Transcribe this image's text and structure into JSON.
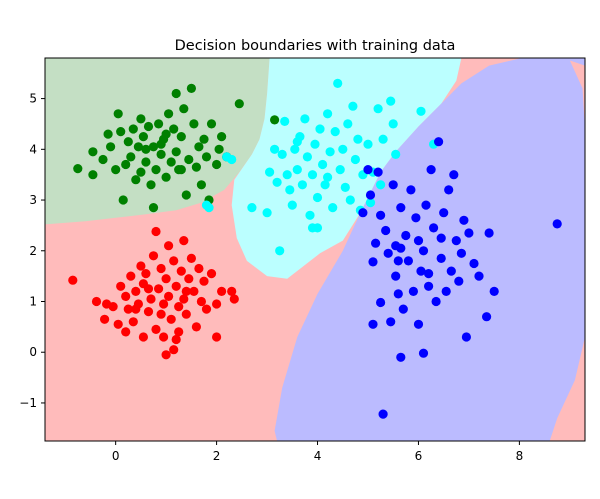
{
  "chart_data": {
    "type": "scatter",
    "title": "Decision boundaries with training data",
    "xlabel": "",
    "ylabel": "",
    "xlim": [
      -1.4,
      9.3
    ],
    "ylim": [
      -1.75,
      5.8
    ],
    "xticks": [
      0,
      2,
      4,
      6,
      8
    ],
    "yticks": [
      -1,
      0,
      1,
      2,
      3,
      4,
      5
    ],
    "grid": false,
    "legend": "none",
    "background_colors": {
      "red_region": "#ffbbbb",
      "green_region": "#c4dfc4",
      "cyan_region": "#bbffff",
      "blue_region": "#bbbbff"
    },
    "series": [
      {
        "color": "#ff0000",
        "points": [
          [
            -0.85,
            1.42
          ],
          [
            -0.38,
            1.0
          ],
          [
            -0.18,
            0.95
          ],
          [
            -0.22,
            0.65
          ],
          [
            -0.05,
            0.9
          ],
          [
            0.1,
            1.3
          ],
          [
            0.2,
            1.1
          ],
          [
            0.05,
            0.55
          ],
          [
            0.25,
            0.85
          ],
          [
            0.3,
            1.5
          ],
          [
            0.35,
            0.6
          ],
          [
            0.4,
            1.2
          ],
          [
            0.45,
            0.95
          ],
          [
            0.5,
            1.7
          ],
          [
            0.55,
            1.35
          ],
          [
            0.55,
            0.3
          ],
          [
            0.6,
            1.55
          ],
          [
            0.65,
            0.8
          ],
          [
            0.7,
            1.05
          ],
          [
            0.75,
            1.9
          ],
          [
            0.8,
            2.38
          ],
          [
            0.8,
            0.45
          ],
          [
            0.85,
            1.25
          ],
          [
            0.9,
            1.65
          ],
          [
            0.95,
            0.95
          ],
          [
            0.95,
            0.3
          ],
          [
            1.0,
            1.45
          ],
          [
            1.05,
            2.1
          ],
          [
            1.05,
            1.1
          ],
          [
            1.1,
            0.65
          ],
          [
            1.15,
            0.05
          ],
          [
            1.15,
            1.8
          ],
          [
            1.2,
            1.3
          ],
          [
            1.25,
            0.9
          ],
          [
            1.25,
            0.4
          ],
          [
            1.3,
            1.6
          ],
          [
            1.35,
            2.2
          ],
          [
            1.35,
            1.05
          ],
          [
            1.4,
            0.75
          ],
          [
            1.45,
            1.45
          ],
          [
            1.5,
            1.85
          ],
          [
            1.55,
            1.2
          ],
          [
            1.6,
            0.5
          ],
          [
            1.65,
            1.65
          ],
          [
            1.7,
            1.0
          ],
          [
            1.75,
            1.4
          ],
          [
            1.8,
            0.85
          ],
          [
            1.9,
            1.55
          ],
          [
            2.0,
            0.95
          ],
          [
            2.0,
            0.3
          ],
          [
            2.1,
            1.2
          ],
          [
            2.3,
            1.2
          ],
          [
            2.35,
            1.05
          ],
          [
            1.0,
            -0.05
          ],
          [
            0.65,
            1.25
          ],
          [
            0.2,
            0.4
          ],
          [
            1.4,
            1.2
          ],
          [
            0.9,
            0.75
          ],
          [
            0.4,
            0.85
          ],
          [
            1.2,
            0.25
          ]
        ]
      },
      {
        "color": "#008000",
        "points": [
          [
            -0.75,
            3.62
          ],
          [
            -0.45,
            3.5
          ],
          [
            -0.45,
            3.95
          ],
          [
            -0.25,
            3.8
          ],
          [
            -0.15,
            4.3
          ],
          [
            -0.1,
            4.05
          ],
          [
            0.0,
            3.6
          ],
          [
            0.05,
            4.7
          ],
          [
            0.1,
            4.35
          ],
          [
            0.15,
            3.0
          ],
          [
            0.2,
            3.7
          ],
          [
            0.25,
            4.15
          ],
          [
            0.3,
            3.85
          ],
          [
            0.35,
            4.4
          ],
          [
            0.4,
            3.4
          ],
          [
            0.45,
            4.05
          ],
          [
            0.5,
            3.55
          ],
          [
            0.5,
            4.6
          ],
          [
            0.55,
            4.25
          ],
          [
            0.6,
            3.75
          ],
          [
            0.65,
            4.45
          ],
          [
            0.7,
            3.3
          ],
          [
            0.75,
            2.85
          ],
          [
            0.75,
            4.05
          ],
          [
            0.8,
            3.6
          ],
          [
            0.85,
            4.5
          ],
          [
            0.9,
            3.9
          ],
          [
            0.95,
            4.2
          ],
          [
            1.0,
            3.45
          ],
          [
            1.05,
            4.7
          ],
          [
            1.1,
            3.75
          ],
          [
            1.15,
            4.4
          ],
          [
            1.2,
            5.1
          ],
          [
            1.2,
            3.95
          ],
          [
            1.25,
            3.6
          ],
          [
            1.3,
            4.25
          ],
          [
            1.35,
            4.8
          ],
          [
            1.4,
            3.1
          ],
          [
            1.45,
            3.8
          ],
          [
            1.5,
            5.2
          ],
          [
            1.55,
            4.5
          ],
          [
            1.6,
            3.65
          ],
          [
            1.65,
            4.05
          ],
          [
            1.7,
            3.3
          ],
          [
            1.75,
            4.2
          ],
          [
            1.8,
            3.85
          ],
          [
            1.85,
            3.0
          ],
          [
            1.9,
            4.5
          ],
          [
            2.0,
            3.7
          ],
          [
            2.05,
            4.0
          ],
          [
            2.1,
            4.25
          ],
          [
            2.2,
            3.85
          ],
          [
            2.45,
            4.9
          ],
          [
            3.15,
            4.58
          ],
          [
            0.9,
            4.1
          ],
          [
            1.3,
            3.6
          ],
          [
            0.6,
            4.0
          ],
          [
            1.0,
            4.3
          ]
        ]
      },
      {
        "color": "#00ffff",
        "points": [
          [
            1.8,
            2.9
          ],
          [
            1.85,
            2.85
          ],
          [
            2.2,
            3.85
          ],
          [
            2.3,
            3.8
          ],
          [
            2.7,
            2.85
          ],
          [
            3.0,
            2.75
          ],
          [
            3.05,
            3.55
          ],
          [
            3.15,
            4.0
          ],
          [
            3.2,
            3.35
          ],
          [
            3.25,
            2.0
          ],
          [
            3.3,
            3.9
          ],
          [
            3.35,
            4.55
          ],
          [
            3.4,
            3.5
          ],
          [
            3.45,
            3.2
          ],
          [
            3.5,
            2.9
          ],
          [
            3.55,
            4.0
          ],
          [
            3.6,
            3.6
          ],
          [
            3.65,
            4.25
          ],
          [
            3.7,
            3.3
          ],
          [
            3.75,
            4.6
          ],
          [
            3.8,
            3.85
          ],
          [
            3.85,
            2.7
          ],
          [
            3.9,
            3.5
          ],
          [
            3.95,
            4.1
          ],
          [
            4.0,
            3.05
          ],
          [
            4.05,
            4.4
          ],
          [
            4.1,
            3.7
          ],
          [
            4.15,
            3.3
          ],
          [
            4.2,
            4.7
          ],
          [
            4.25,
            3.95
          ],
          [
            4.3,
            2.85
          ],
          [
            4.35,
            4.35
          ],
          [
            4.4,
            5.3
          ],
          [
            4.45,
            3.6
          ],
          [
            4.5,
            4.0
          ],
          [
            4.55,
            3.25
          ],
          [
            4.6,
            4.5
          ],
          [
            4.65,
            3.0
          ],
          [
            4.7,
            4.85
          ],
          [
            4.75,
            3.8
          ],
          [
            4.8,
            4.2
          ],
          [
            4.85,
            2.8
          ],
          [
            4.9,
            3.5
          ],
          [
            5.0,
            4.1
          ],
          [
            5.05,
            2.95
          ],
          [
            5.1,
            3.55
          ],
          [
            5.2,
            4.8
          ],
          [
            5.25,
            3.3
          ],
          [
            5.3,
            4.2
          ],
          [
            5.45,
            4.95
          ],
          [
            5.5,
            4.5
          ],
          [
            5.55,
            3.9
          ],
          [
            6.05,
            4.75
          ],
          [
            6.3,
            4.1
          ],
          [
            4.0,
            2.45
          ],
          [
            3.6,
            4.15
          ],
          [
            4.2,
            3.45
          ],
          [
            3.9,
            2.45
          ]
        ]
      },
      {
        "color": "#0000ff",
        "points": [
          [
            4.9,
            2.75
          ],
          [
            5.0,
            3.6
          ],
          [
            5.05,
            3.1
          ],
          [
            5.1,
            0.55
          ],
          [
            5.1,
            1.78
          ],
          [
            5.15,
            2.15
          ],
          [
            5.2,
            3.55
          ],
          [
            5.25,
            0.98
          ],
          [
            5.25,
            2.7
          ],
          [
            5.3,
            -1.22
          ],
          [
            5.35,
            2.4
          ],
          [
            5.4,
            1.95
          ],
          [
            5.45,
            0.6
          ],
          [
            5.5,
            3.3
          ],
          [
            5.55,
            2.1
          ],
          [
            5.55,
            1.5
          ],
          [
            5.6,
            1.15
          ],
          [
            5.65,
            -0.1
          ],
          [
            5.65,
            2.85
          ],
          [
            5.7,
            0.85
          ],
          [
            5.75,
            2.3
          ],
          [
            5.8,
            1.8
          ],
          [
            5.85,
            3.2
          ],
          [
            5.9,
            1.2
          ],
          [
            5.95,
            2.65
          ],
          [
            6.0,
            0.55
          ],
          [
            6.05,
            1.6
          ],
          [
            6.1,
            2.0
          ],
          [
            6.1,
            -0.02
          ],
          [
            6.15,
            2.9
          ],
          [
            6.2,
            1.3
          ],
          [
            6.25,
            3.6
          ],
          [
            6.3,
            2.45
          ],
          [
            6.35,
            1.0
          ],
          [
            6.4,
            4.15
          ],
          [
            6.45,
            1.85
          ],
          [
            6.5,
            2.75
          ],
          [
            6.55,
            1.2
          ],
          [
            6.6,
            3.2
          ],
          [
            6.65,
            1.6
          ],
          [
            6.7,
            3.5
          ],
          [
            6.75,
            2.2
          ],
          [
            6.8,
            1.4
          ],
          [
            6.85,
            1.95
          ],
          [
            6.9,
            2.6
          ],
          [
            6.95,
            0.3
          ],
          [
            7.0,
            2.35
          ],
          [
            7.1,
            1.75
          ],
          [
            7.2,
            1.5
          ],
          [
            7.35,
            0.7
          ],
          [
            7.4,
            2.35
          ],
          [
            7.5,
            1.2
          ],
          [
            8.75,
            2.53
          ],
          [
            5.65,
            2.05
          ],
          [
            6.0,
            2.2
          ],
          [
            5.6,
            1.8
          ],
          [
            6.2,
            1.55
          ],
          [
            6.45,
            2.25
          ]
        ]
      }
    ]
  }
}
